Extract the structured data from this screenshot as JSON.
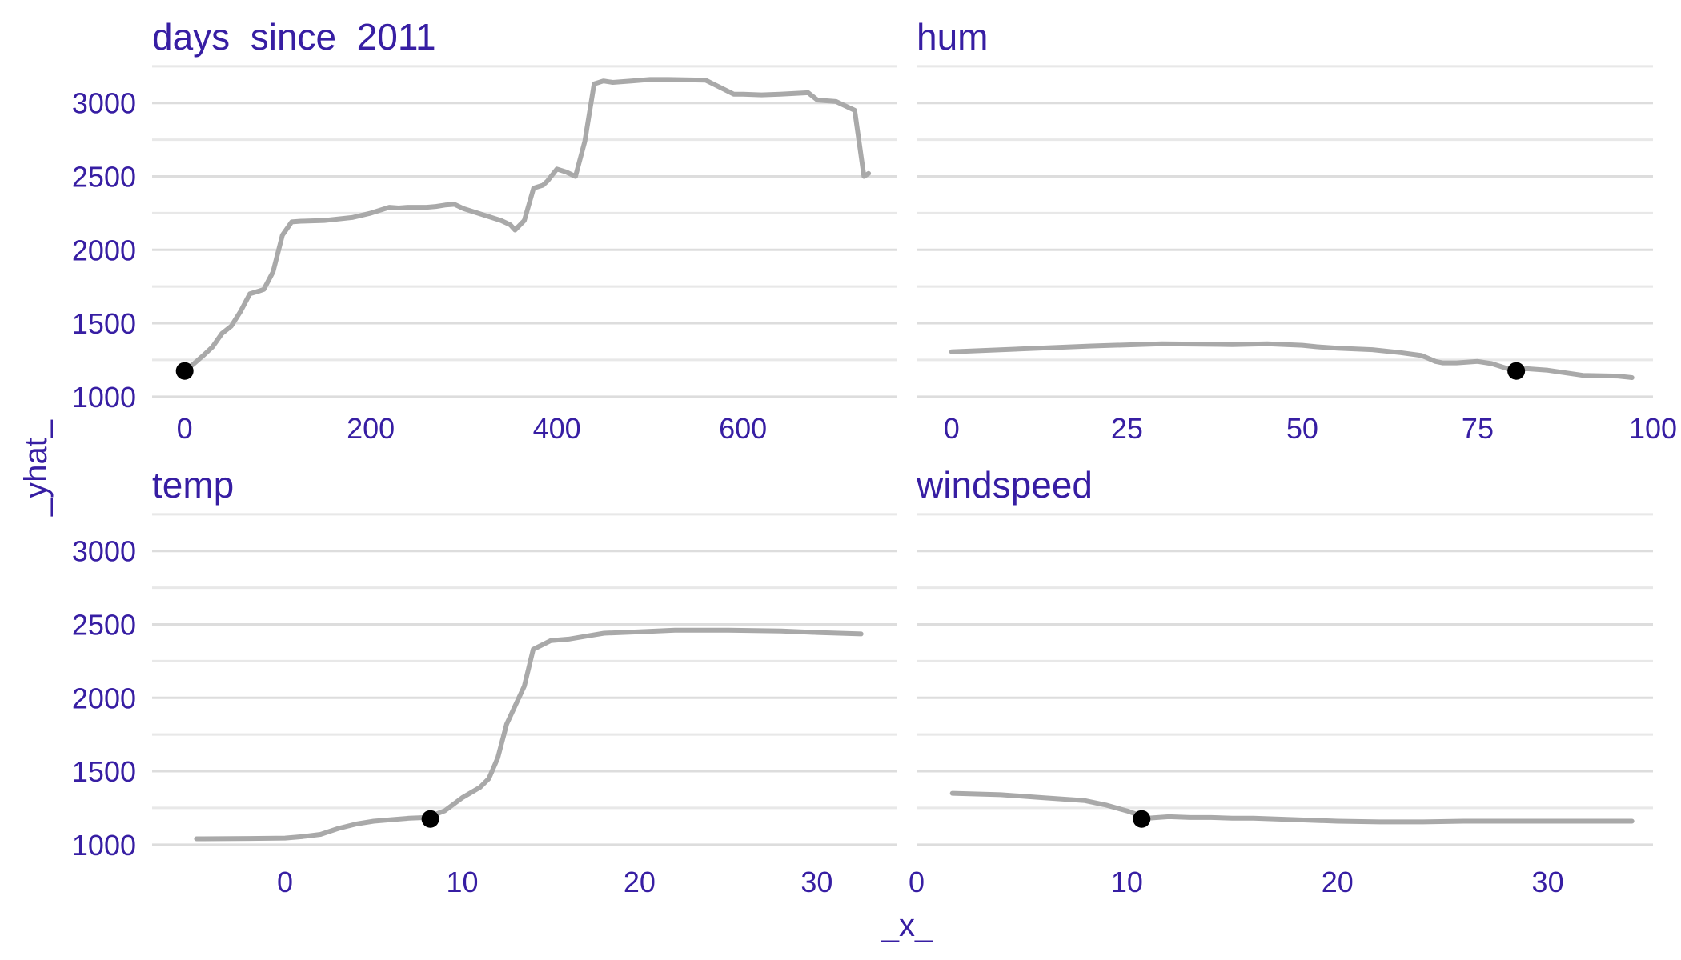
{
  "chart_data": {
    "type": "line",
    "ylabel": "_yhat_",
    "xlabel": "_x_",
    "ylim": [
      950,
      3320
    ],
    "yticks": [
      1000,
      1500,
      2000,
      2500,
      3000
    ],
    "grid": true,
    "colors": {
      "line": "#a9a9a9",
      "point": "#000000",
      "text": "#371ea3",
      "grid": "#dddddd"
    },
    "panels": [
      {
        "title": "days  since  2011",
        "xlim": [
          -35,
          765
        ],
        "xticks": [
          0,
          200,
          400,
          600
        ],
        "series": {
          "x": [
            0,
            10,
            20,
            30,
            40,
            50,
            60,
            70,
            80,
            85,
            95,
            105,
            115,
            125,
            150,
            180,
            200,
            220,
            230,
            240,
            250,
            260,
            270,
            280,
            290,
            300,
            320,
            340,
            350,
            355,
            365,
            375,
            385,
            390,
            400,
            410,
            420,
            430,
            440,
            450,
            460,
            480,
            500,
            520,
            560,
            590,
            600,
            620,
            640,
            670,
            680,
            700,
            720,
            730,
            735
          ],
          "y": [
            1175,
            1225,
            1280,
            1340,
            1430,
            1480,
            1580,
            1700,
            1720,
            1730,
            1850,
            2100,
            2190,
            2195,
            2200,
            2220,
            2250,
            2290,
            2285,
            2290,
            2290,
            2290,
            2295,
            2305,
            2310,
            2280,
            2240,
            2200,
            2170,
            2135,
            2200,
            2420,
            2440,
            2470,
            2550,
            2530,
            2500,
            2740,
            3130,
            3150,
            3140,
            3150,
            3160,
            3160,
            3155,
            3060,
            3060,
            3055,
            3060,
            3070,
            3020,
            3010,
            2950,
            2500,
            2520
          ]
        },
        "point": {
          "x": 0,
          "y": 1175
        }
      },
      {
        "title": "hum",
        "xlim": [
          -5,
          100
        ],
        "xticks": [
          0,
          25,
          50,
          75,
          100
        ],
        "series": {
          "x": [
            0,
            20,
            30,
            40,
            45,
            50,
            52,
            55,
            60,
            64,
            67,
            69,
            70,
            72,
            75,
            77,
            80,
            82,
            85,
            90,
            95,
            97
          ],
          "y": [
            1305,
            1345,
            1360,
            1355,
            1360,
            1350,
            1340,
            1330,
            1320,
            1300,
            1280,
            1240,
            1230,
            1230,
            1240,
            1225,
            1180,
            1190,
            1180,
            1145,
            1140,
            1130
          ]
        },
        "point": {
          "x": 80.5,
          "y": 1175
        }
      },
      {
        "title": "temp",
        "xlim": [
          -7.5,
          34.5
        ],
        "xticks": [
          0,
          10,
          20,
          30
        ],
        "series": {
          "x": [
            -5,
            -2,
            0,
            1,
            2,
            3,
            4,
            5,
            6,
            7,
            8,
            9,
            10,
            11,
            11.5,
            12,
            12.5,
            13,
            13.5,
            14,
            15,
            16,
            17,
            18,
            20,
            22,
            25,
            28,
            30,
            32.5
          ],
          "y": [
            1040,
            1042,
            1045,
            1055,
            1070,
            1110,
            1140,
            1160,
            1170,
            1180,
            1185,
            1230,
            1320,
            1390,
            1450,
            1590,
            1820,
            1950,
            2080,
            2330,
            2390,
            2400,
            2420,
            2440,
            2450,
            2460,
            2460,
            2455,
            2445,
            2435
          ]
        },
        "point": {
          "x": 8.2,
          "y": 1175
        }
      },
      {
        "title": "windspeed",
        "xlim": [
          0,
          35
        ],
        "xticks": [
          0,
          10,
          20,
          30
        ],
        "series": {
          "x": [
            1.7,
            4,
            6,
            8,
            9,
            10,
            11,
            12,
            13,
            14,
            15,
            16,
            18,
            20,
            22,
            24,
            26,
            28,
            30,
            32,
            34
          ],
          "y": [
            1350,
            1340,
            1320,
            1300,
            1270,
            1230,
            1180,
            1190,
            1185,
            1185,
            1180,
            1180,
            1170,
            1160,
            1155,
            1155,
            1160,
            1160,
            1160,
            1160,
            1160
          ]
        },
        "point": {
          "x": 10.7,
          "y": 1175
        }
      }
    ]
  }
}
